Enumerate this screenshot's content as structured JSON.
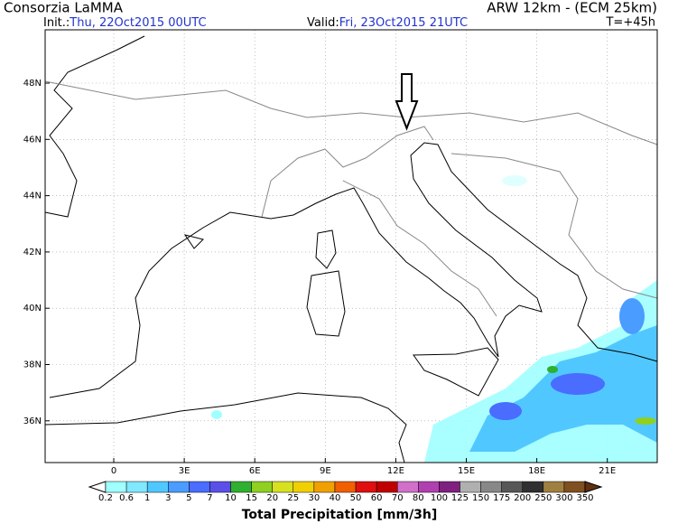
{
  "header": {
    "left_title": "Consorzia LaMMA",
    "right_title": "ARW 12km - (ECM 25km)",
    "init_label": "Init.:",
    "init_value": "Thu, 22Oct2015 00UTC",
    "valid_label": "Valid:",
    "valid_value": "Fri, 23Oct2015 21UTC",
    "forecast_time": "T=+45h"
  },
  "map": {
    "lat_labels": [
      "48N",
      "46N",
      "44N",
      "42N",
      "40N",
      "38N",
      "36N"
    ],
    "lon_labels": [
      "0",
      "3E",
      "6E",
      "9E",
      "12E",
      "15E",
      "18E",
      "21E"
    ]
  },
  "legend": {
    "title": "Total Precipitation [mm/3h]",
    "levels": [
      0.2,
      0.6,
      1,
      3,
      5,
      7,
      10,
      15,
      20,
      25,
      30,
      40,
      50,
      60,
      70,
      80,
      100,
      125,
      150,
      175,
      200,
      250,
      300,
      350
    ],
    "colors": [
      "#a0ffff",
      "#80e8ff",
      "#50c8ff",
      "#4a9cff",
      "#4a6cff",
      "#5a50e8",
      "#30b030",
      "#90d020",
      "#d8e020",
      "#f0d000",
      "#f0a000",
      "#f06000",
      "#e01010",
      "#c00000",
      "#d070c8",
      "#b040b0",
      "#802080",
      "#b0b0b0",
      "#888888",
      "#585858",
      "#303030",
      "#a08040",
      "#805020"
    ]
  }
}
